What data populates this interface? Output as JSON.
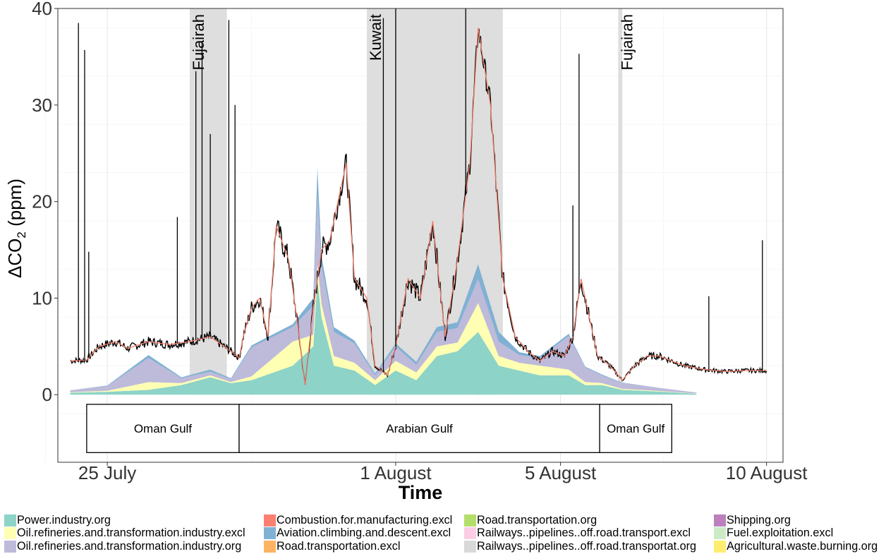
{
  "chart_data": {
    "type": "area",
    "xlabel": "Time",
    "ylabel_main": "ΔCO",
    "ylabel_sub": "2",
    "ylabel_unit": " (ppm)",
    "ylim": [
      -7,
      40
    ],
    "xlim_days": [
      -1.2,
      16.4
    ],
    "y_ticks": [
      0,
      10,
      20,
      30,
      40
    ],
    "y_tick_labels": [
      "0",
      "10",
      "20",
      "30",
      "40"
    ],
    "x_ticks": [
      {
        "label": "25 July",
        "day": 0
      },
      {
        "label": "1 August",
        "day": 7
      },
      {
        "label": "5 August",
        "day": 11
      },
      {
        "label": "10 August",
        "day": 16
      }
    ],
    "grid": true,
    "port_periods": [
      {
        "label": "Fujairah",
        "start": 2.0,
        "end": 2.9
      },
      {
        "label": "Kuwait",
        "start": 6.3,
        "end": 9.6
      },
      {
        "label": "Fujairah",
        "start": 12.4,
        "end": 12.5
      }
    ],
    "regions": [
      {
        "label": "Oman Gulf",
        "start": -0.5,
        "end": 3.2
      },
      {
        "label": "Arabian Gulf",
        "start": 3.2,
        "end": 11.95
      },
      {
        "label": "Oman Gulf",
        "start": 11.95,
        "end": 13.7
      }
    ],
    "region_box_y": [
      -6,
      -1
    ],
    "legend_columns": [
      [
        {
          "label": "Power.industry.org",
          "color": "#8dd3c7"
        },
        {
          "label": "Oil.refineries.and.transformation.industry.excl",
          "color": "#ffffb3"
        },
        {
          "label": "Oil.refineries.and.transformation.industry.org",
          "color": "#bebada"
        }
      ],
      [
        {
          "label": "Combustion.for.manufacturing.excl",
          "color": "#fb8072"
        },
        {
          "label": "Aviation.climbing.and.descent.excl",
          "color": "#80b1d3"
        },
        {
          "label": "Road.transportation.excl",
          "color": "#fdb462"
        }
      ],
      [
        {
          "label": "Road.transportation.org",
          "color": "#b3de69"
        },
        {
          "label": "Railways..pipelines..off.road.transport.excl",
          "color": "#fccde5"
        },
        {
          "label": "Railways..pipelines..off.road.transportat.org",
          "color": "#d9d9d9"
        }
      ],
      [
        {
          "label": "Shipping.org",
          "color": "#bc80bd"
        },
        {
          "label": "Fuel.exploitation.excl",
          "color": "#ccebc5"
        },
        {
          "label": "Agricultural.waste.burning.org",
          "color": "#ffed6f"
        }
      ]
    ],
    "stack_series": [
      {
        "name": "Power.industry.org",
        "color": "#8dd3c7",
        "points": [
          [
            -0.9,
            0.2
          ],
          [
            0,
            0.3
          ],
          [
            1,
            0.5
          ],
          [
            1.8,
            1.0
          ],
          [
            2.5,
            1.8
          ],
          [
            3.0,
            1.2
          ],
          [
            3.5,
            1.5
          ],
          [
            4.5,
            3.0
          ],
          [
            5.0,
            5.0
          ],
          [
            5.1,
            12.0
          ],
          [
            5.2,
            8.0
          ],
          [
            5.5,
            3.0
          ],
          [
            6.0,
            2.5
          ],
          [
            6.5,
            1.0
          ],
          [
            7.0,
            2.5
          ],
          [
            7.5,
            1.5
          ],
          [
            8.0,
            4.0
          ],
          [
            8.5,
            4.5
          ],
          [
            9.0,
            6.5
          ],
          [
            9.5,
            3.0
          ],
          [
            10.0,
            2.5
          ],
          [
            10.5,
            2.0
          ],
          [
            11.2,
            2.0
          ],
          [
            11.6,
            1.0
          ],
          [
            12.0,
            1.0
          ],
          [
            12.5,
            0.5
          ],
          [
            13.5,
            0.3
          ],
          [
            14.3,
            0.1
          ]
        ]
      },
      {
        "name": "Oil.refineries.and.transformation.industry.excl",
        "color": "#ffffb3",
        "points": [
          [
            -0.9,
            0.05
          ],
          [
            0,
            0.1
          ],
          [
            1,
            0.8
          ],
          [
            1.8,
            0.2
          ],
          [
            2.5,
            0.2
          ],
          [
            3.0,
            0.1
          ],
          [
            3.5,
            0.4
          ],
          [
            4.5,
            2.5
          ],
          [
            5.0,
            1.2
          ],
          [
            5.1,
            1.5
          ],
          [
            5.5,
            1.0
          ],
          [
            6.0,
            0.8
          ],
          [
            6.5,
            0.5
          ],
          [
            7.0,
            1.0
          ],
          [
            7.5,
            0.8
          ],
          [
            8.0,
            1.0
          ],
          [
            8.5,
            0.9
          ],
          [
            9.0,
            3.0
          ],
          [
            9.5,
            1.0
          ],
          [
            10.0,
            0.8
          ],
          [
            10.5,
            1.0
          ],
          [
            11.2,
            0.6
          ],
          [
            11.6,
            0.3
          ],
          [
            12.0,
            0.2
          ],
          [
            12.5,
            0.1
          ],
          [
            13.5,
            0.05
          ],
          [
            14.3,
            0.02
          ]
        ]
      },
      {
        "name": "Oil.refineries.and.transformation.industry.org",
        "color": "#bebada",
        "points": [
          [
            -0.9,
            0.2
          ],
          [
            0,
            0.5
          ],
          [
            1,
            2.5
          ],
          [
            1.8,
            0.5
          ],
          [
            2.5,
            0.4
          ],
          [
            3.0,
            0.3
          ],
          [
            3.5,
            3.0
          ],
          [
            4.5,
            1.5
          ],
          [
            5.0,
            3.0
          ],
          [
            5.1,
            7.0
          ],
          [
            5.2,
            4.0
          ],
          [
            5.5,
            2.5
          ],
          [
            6.0,
            2.0
          ],
          [
            6.5,
            0.5
          ],
          [
            7.0,
            1.5
          ],
          [
            7.5,
            0.8
          ],
          [
            8.0,
            1.5
          ],
          [
            8.5,
            1.5
          ],
          [
            9.0,
            2.5
          ],
          [
            9.5,
            1.5
          ],
          [
            10.0,
            0.8
          ],
          [
            10.5,
            0.8
          ],
          [
            11.2,
            3.5
          ],
          [
            11.6,
            1.5
          ],
          [
            12.0,
            0.8
          ],
          [
            12.5,
            0.6
          ],
          [
            13.5,
            0.3
          ],
          [
            14.3,
            0.1
          ]
        ]
      },
      {
        "name": "Aviation.climbing.and.descent.excl",
        "color": "#80b1d3",
        "points": [
          [
            -0.9,
            0.0
          ],
          [
            0,
            0.05
          ],
          [
            1,
            0.3
          ],
          [
            1.8,
            0.1
          ],
          [
            2.5,
            0.2
          ],
          [
            3.0,
            0.1
          ],
          [
            3.5,
            0.2
          ],
          [
            4.5,
            0.3
          ],
          [
            5.0,
            0.8
          ],
          [
            5.1,
            3.0
          ],
          [
            5.2,
            1.0
          ],
          [
            5.5,
            0.5
          ],
          [
            6.0,
            0.3
          ],
          [
            6.5,
            0.2
          ],
          [
            7.0,
            0.3
          ],
          [
            7.5,
            0.3
          ],
          [
            8.0,
            0.5
          ],
          [
            8.5,
            0.6
          ],
          [
            9.0,
            1.5
          ],
          [
            9.5,
            1.0
          ],
          [
            10.0,
            0.3
          ],
          [
            10.5,
            0.2
          ],
          [
            11.2,
            0.2
          ],
          [
            11.6,
            0.1
          ],
          [
            12.0,
            0.1
          ],
          [
            12.5,
            0.05
          ],
          [
            13.5,
            0.0
          ],
          [
            14.3,
            0.0
          ]
        ]
      }
    ],
    "ship_series": {
      "name": "ship",
      "color": "#000000",
      "points": [
        [
          -0.9,
          3.5
        ],
        [
          -0.5,
          3.6
        ],
        [
          -0.2,
          5.0
        ],
        [
          0.2,
          5.5
        ],
        [
          0.5,
          4.8
        ],
        [
          1.0,
          5.5
        ],
        [
          1.5,
          5.2
        ],
        [
          2.0,
          5.5
        ],
        [
          2.5,
          6.0
        ],
        [
          3.0,
          4.5
        ],
        [
          3.2,
          3.8
        ],
        [
          3.3,
          6.0
        ],
        [
          3.5,
          9.0
        ],
        [
          3.7,
          10.0
        ],
        [
          3.9,
          6.0
        ],
        [
          4.1,
          17.5
        ],
        [
          4.4,
          14.0
        ],
        [
          4.6,
          8.0
        ],
        [
          4.8,
          1.0
        ],
        [
          5.0,
          9.0
        ],
        [
          5.2,
          15.0
        ],
        [
          5.4,
          16.0
        ],
        [
          5.6,
          20.0
        ],
        [
          5.8,
          24.0
        ],
        [
          6.0,
          12.0
        ],
        [
          6.3,
          10.0
        ],
        [
          6.5,
          3.0
        ],
        [
          6.8,
          2.0
        ],
        [
          7.0,
          5.0
        ],
        [
          7.3,
          12.0
        ],
        [
          7.6,
          10.0
        ],
        [
          7.9,
          18.0
        ],
        [
          8.2,
          6.0
        ],
        [
          8.5,
          14.0
        ],
        [
          8.8,
          24.0
        ],
        [
          9.0,
          38.0
        ],
        [
          9.3,
          30.0
        ],
        [
          9.6,
          12.0
        ],
        [
          9.9,
          6.0
        ],
        [
          10.2,
          4.5
        ],
        [
          10.5,
          3.5
        ],
        [
          10.8,
          4.5
        ],
        [
          11.1,
          4.0
        ],
        [
          11.3,
          6.0
        ],
        [
          11.5,
          12.0
        ],
        [
          11.7,
          8.0
        ],
        [
          11.9,
          4.0
        ],
        [
          12.2,
          3.0
        ],
        [
          12.5,
          1.5
        ],
        [
          12.8,
          3.0
        ],
        [
          13.1,
          4.0
        ],
        [
          13.4,
          4.0
        ],
        [
          13.7,
          3.5
        ],
        [
          14.0,
          3.0
        ],
        [
          14.5,
          2.6
        ],
        [
          15.0,
          2.4
        ],
        [
          15.5,
          2.5
        ],
        [
          16.0,
          2.5
        ]
      ]
    },
    "model_total": {
      "name": "model",
      "color": "#f4816d"
    },
    "spikes": [
      {
        "x": -0.7,
        "y": 38.5
      },
      {
        "x": -0.55,
        "y": 35.7
      },
      {
        "x": -0.45,
        "y": 14.8
      },
      {
        "x": 1.7,
        "y": 18.4
      },
      {
        "x": 2.15,
        "y": 33.5
      },
      {
        "x": 2.3,
        "y": 36.5
      },
      {
        "x": 2.5,
        "y": 27.0
      },
      {
        "x": 2.95,
        "y": 38.8
      },
      {
        "x": 3.1,
        "y": 30.0
      },
      {
        "x": 6.7,
        "y": 39.0
      },
      {
        "x": 7.0,
        "y": 40.0
      },
      {
        "x": 8.7,
        "y": 40.0
      },
      {
        "x": 11.3,
        "y": 19.6
      },
      {
        "x": 11.45,
        "y": 35.3
      },
      {
        "x": 14.6,
        "y": 10.2
      },
      {
        "x": 15.9,
        "y": 16.0
      }
    ]
  }
}
